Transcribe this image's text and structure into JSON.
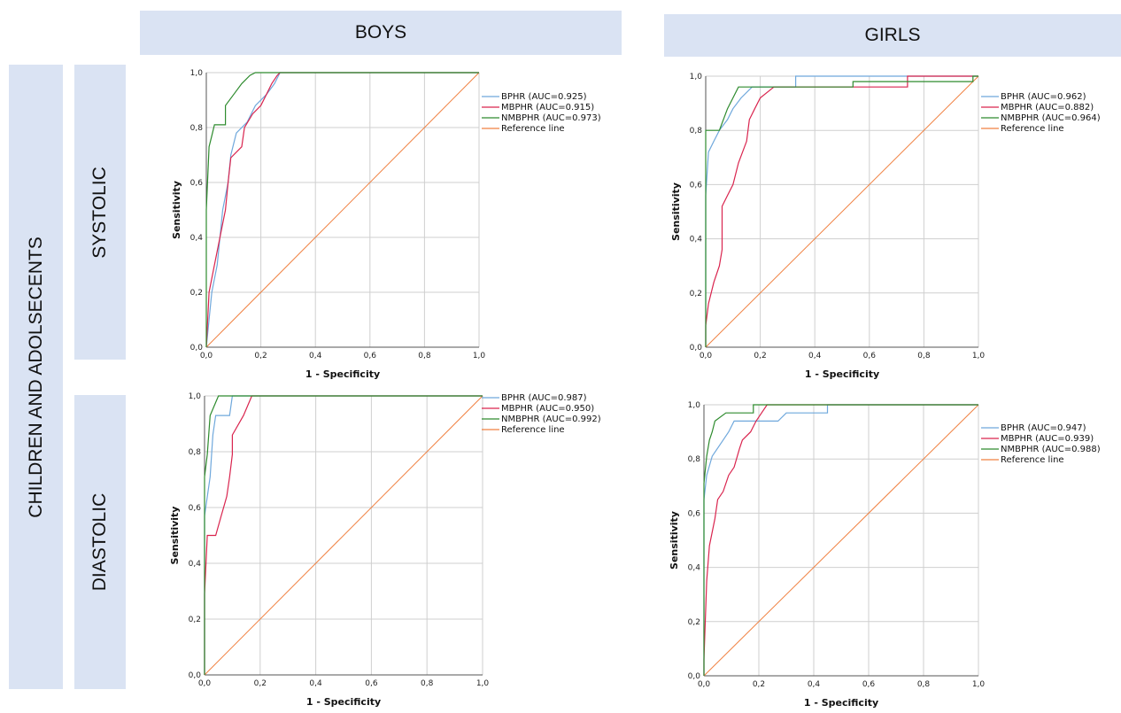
{
  "headers": {
    "boys": "BOYS",
    "girls": "GIRLS",
    "group": "CHILDREN AND ADOLSECENTS",
    "systolic": "SYSTOLIC",
    "diastolic": "DIASTOLIC"
  },
  "colors": {
    "BPHR": "#6fa8dc",
    "MBPHR": "#d9244e",
    "NMBPHR": "#2e8b2e",
    "Reference line": "#f08040",
    "grid": "#cfcfcf",
    "header_bg": "#dae3f3"
  },
  "chart_data": [
    {
      "id": "boys-systolic",
      "type": "line",
      "xlabel": "1 - Specificity",
      "ylabel": "Sensitivity",
      "xlim": [
        0,
        1
      ],
      "ylim": [
        0,
        1
      ],
      "grid": true,
      "legend_position": "right",
      "ticks": [
        "0,0",
        "0,2",
        "0,4",
        "0,6",
        "0,8",
        "1,0"
      ],
      "series": [
        {
          "name": "BPHR",
          "legend": "BPHR (AUC=0.925)",
          "points": [
            [
              0,
              0
            ],
            [
              0.01,
              0.1
            ],
            [
              0.02,
              0.2
            ],
            [
              0.04,
              0.3
            ],
            [
              0.05,
              0.4
            ],
            [
              0.06,
              0.5
            ],
            [
              0.08,
              0.6
            ],
            [
              0.09,
              0.7
            ],
            [
              0.11,
              0.78
            ],
            [
              0.15,
              0.82
            ],
            [
              0.18,
              0.88
            ],
            [
              0.22,
              0.92
            ],
            [
              0.25,
              0.96
            ],
            [
              0.27,
              1
            ],
            [
              1,
              1
            ]
          ]
        },
        {
          "name": "MBPHR",
          "legend": "MBPHR (AUC=0.915)",
          "points": [
            [
              0,
              0
            ],
            [
              0.01,
              0.2
            ],
            [
              0.03,
              0.3
            ],
            [
              0.05,
              0.4
            ],
            [
              0.07,
              0.5
            ],
            [
              0.08,
              0.6
            ],
            [
              0.09,
              0.69
            ],
            [
              0.13,
              0.73
            ],
            [
              0.14,
              0.8
            ],
            [
              0.17,
              0.85
            ],
            [
              0.2,
              0.88
            ],
            [
              0.22,
              0.92
            ],
            [
              0.24,
              0.96
            ],
            [
              0.26,
              0.99
            ],
            [
              0.27,
              1
            ],
            [
              1,
              1
            ]
          ]
        },
        {
          "name": "NMBPHR",
          "legend": "NMBPHR (AUC=0.973)",
          "points": [
            [
              0,
              0
            ],
            [
              0,
              0.5
            ],
            [
              0.01,
              0.73
            ],
            [
              0.02,
              0.77
            ],
            [
              0.03,
              0.81
            ],
            [
              0.07,
              0.81
            ],
            [
              0.07,
              0.88
            ],
            [
              0.1,
              0.92
            ],
            [
              0.13,
              0.96
            ],
            [
              0.16,
              0.99
            ],
            [
              0.18,
              1
            ],
            [
              1,
              1
            ]
          ]
        },
        {
          "name": "Reference line",
          "legend": "Reference line",
          "points": [
            [
              0,
              0
            ],
            [
              1,
              1
            ]
          ]
        }
      ]
    },
    {
      "id": "girls-systolic",
      "type": "line",
      "xlabel": "1 - Specificity",
      "ylabel": "Sensitivity",
      "xlim": [
        0,
        1
      ],
      "ylim": [
        0,
        1
      ],
      "grid": true,
      "legend_position": "right",
      "ticks": [
        "0,0",
        "0,2",
        "0,4",
        "0,6",
        "0,8",
        "1,0"
      ],
      "series": [
        {
          "name": "BPHR",
          "legend": "BPHR (AUC=0.962)",
          "points": [
            [
              0,
              0
            ],
            [
              0,
              0.56
            ],
            [
              0.01,
              0.72
            ],
            [
              0.03,
              0.76
            ],
            [
              0.05,
              0.8
            ],
            [
              0.08,
              0.84
            ],
            [
              0.1,
              0.88
            ],
            [
              0.13,
              0.92
            ],
            [
              0.17,
              0.96
            ],
            [
              0.33,
              0.96
            ],
            [
              0.33,
              1
            ],
            [
              1,
              1
            ]
          ]
        },
        {
          "name": "MBPHR",
          "legend": "MBPHR (AUC=0.882)",
          "points": [
            [
              0,
              0
            ],
            [
              0,
              0.08
            ],
            [
              0.01,
              0.16
            ],
            [
              0.03,
              0.24
            ],
            [
              0.05,
              0.3
            ],
            [
              0.06,
              0.36
            ],
            [
              0.06,
              0.52
            ],
            [
              0.08,
              0.56
            ],
            [
              0.1,
              0.6
            ],
            [
              0.12,
              0.68
            ],
            [
              0.15,
              0.76
            ],
            [
              0.16,
              0.84
            ],
            [
              0.18,
              0.88
            ],
            [
              0.2,
              0.92
            ],
            [
              0.25,
              0.96
            ],
            [
              0.74,
              0.96
            ],
            [
              0.74,
              1
            ],
            [
              1,
              1
            ]
          ]
        },
        {
          "name": "NMBPHR",
          "legend": "NMBPHR (AUC=0.964)",
          "points": [
            [
              0,
              0
            ],
            [
              0,
              0.8
            ],
            [
              0.05,
              0.8
            ],
            [
              0.08,
              0.88
            ],
            [
              0.1,
              0.92
            ],
            [
              0.12,
              0.96
            ],
            [
              0.54,
              0.96
            ],
            [
              0.54,
              0.98
            ],
            [
              0.98,
              0.98
            ],
            [
              0.98,
              1
            ],
            [
              1,
              1
            ]
          ]
        },
        {
          "name": "Reference line",
          "legend": "Reference line",
          "points": [
            [
              0,
              0
            ],
            [
              1,
              1
            ]
          ]
        }
      ]
    },
    {
      "id": "boys-diastolic",
      "type": "line",
      "xlabel": "1 - Specificity",
      "ylabel": "Sensitivity",
      "xlim": [
        0,
        1
      ],
      "ylim": [
        0,
        1
      ],
      "grid": true,
      "legend_position": "right",
      "ticks": [
        "0,0",
        "0,2",
        "0,4",
        "0,6",
        "0,8",
        "1,0"
      ],
      "series": [
        {
          "name": "BPHR",
          "legend": "BPHR (AUC=0.987)",
          "points": [
            [
              0,
              0
            ],
            [
              0,
              0.57
            ],
            [
              0.02,
              0.71
            ],
            [
              0.03,
              0.86
            ],
            [
              0.04,
              0.93
            ],
            [
              0.09,
              0.93
            ],
            [
              0.1,
              1
            ],
            [
              1,
              1
            ]
          ]
        },
        {
          "name": "MBPHR",
          "legend": "MBPHR (AUC=0.950)",
          "points": [
            [
              0,
              0
            ],
            [
              0,
              0.29
            ],
            [
              0.01,
              0.5
            ],
            [
              0.04,
              0.5
            ],
            [
              0.06,
              0.57
            ],
            [
              0.08,
              0.64
            ],
            [
              0.09,
              0.71
            ],
            [
              0.1,
              0.79
            ],
            [
              0.1,
              0.86
            ],
            [
              0.14,
              0.93
            ],
            [
              0.17,
              1
            ],
            [
              1,
              1
            ]
          ]
        },
        {
          "name": "NMBPHR",
          "legend": "NMBPHR (AUC=0.992)",
          "points": [
            [
              0,
              0
            ],
            [
              0,
              0.71
            ],
            [
              0.01,
              0.79
            ],
            [
              0.02,
              0.93
            ],
            [
              0.05,
              1
            ],
            [
              1,
              1
            ]
          ]
        },
        {
          "name": "Reference line",
          "legend": "Reference line",
          "points": [
            [
              0,
              0
            ],
            [
              1,
              1
            ]
          ]
        }
      ]
    },
    {
      "id": "girls-diastolic",
      "type": "line",
      "xlabel": "1 - Specificity",
      "ylabel": "Sensitivity",
      "xlim": [
        0,
        1
      ],
      "ylim": [
        0,
        1
      ],
      "grid": true,
      "legend_position": "right",
      "ticks": [
        "0,0",
        "0,2",
        "0,4",
        "0,6",
        "0,8",
        "1,0"
      ],
      "series": [
        {
          "name": "BPHR",
          "legend": "BPHR (AUC=0.947)",
          "points": [
            [
              0,
              0
            ],
            [
              0,
              0.65
            ],
            [
              0.01,
              0.74
            ],
            [
              0.03,
              0.81
            ],
            [
              0.07,
              0.87
            ],
            [
              0.09,
              0.9
            ],
            [
              0.11,
              0.94
            ],
            [
              0.27,
              0.94
            ],
            [
              0.3,
              0.97
            ],
            [
              0.45,
              0.97
            ],
            [
              0.45,
              1
            ],
            [
              1,
              1
            ]
          ]
        },
        {
          "name": "MBPHR",
          "legend": "MBPHR (AUC=0.939)",
          "points": [
            [
              0,
              0
            ],
            [
              0,
              0.06
            ],
            [
              0.01,
              0.35
            ],
            [
              0.02,
              0.48
            ],
            [
              0.04,
              0.58
            ],
            [
              0.05,
              0.65
            ],
            [
              0.07,
              0.68
            ],
            [
              0.09,
              0.74
            ],
            [
              0.11,
              0.77
            ],
            [
              0.13,
              0.84
            ],
            [
              0.14,
              0.87
            ],
            [
              0.17,
              0.9
            ],
            [
              0.19,
              0.94
            ],
            [
              0.21,
              0.97
            ],
            [
              0.23,
              1
            ],
            [
              1,
              1
            ]
          ]
        },
        {
          "name": "NMBPHR",
          "legend": "NMBPHR (AUC=0.988)",
          "points": [
            [
              0,
              0
            ],
            [
              0,
              0.71
            ],
            [
              0.01,
              0.81
            ],
            [
              0.02,
              0.87
            ],
            [
              0.03,
              0.9
            ],
            [
              0.04,
              0.94
            ],
            [
              0.08,
              0.97
            ],
            [
              0.18,
              0.97
            ],
            [
              0.18,
              1
            ],
            [
              1,
              1
            ]
          ]
        },
        {
          "name": "Reference line",
          "legend": "Reference line",
          "points": [
            [
              0,
              0
            ],
            [
              1,
              1
            ]
          ]
        }
      ]
    }
  ]
}
